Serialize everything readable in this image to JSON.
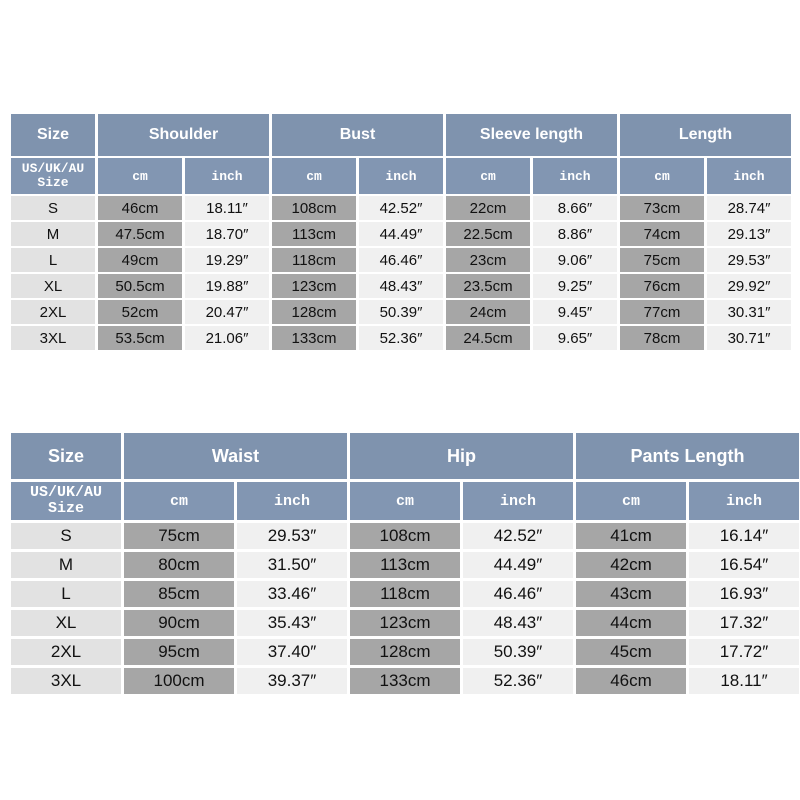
{
  "top": {
    "size_label": "Size",
    "region_label": "US/UK/AU\nSize",
    "groups": [
      "Shoulder",
      "Bust",
      "Sleeve length",
      "Length"
    ],
    "unit_cm": "cm",
    "unit_inch": "inch",
    "rows": [
      {
        "size": "S",
        "cells": [
          "46cm",
          "18.11″",
          "108cm",
          "42.52″",
          "22cm",
          "8.66″",
          "73cm",
          "28.74″"
        ]
      },
      {
        "size": "M",
        "cells": [
          "47.5cm",
          "18.70″",
          "113cm",
          "44.49″",
          "22.5cm",
          "8.86″",
          "74cm",
          "29.13″"
        ]
      },
      {
        "size": "L",
        "cells": [
          "49cm",
          "19.29″",
          "118cm",
          "46.46″",
          "23cm",
          "9.06″",
          "75cm",
          "29.53″"
        ]
      },
      {
        "size": "XL",
        "cells": [
          "50.5cm",
          "19.88″",
          "123cm",
          "48.43″",
          "23.5cm",
          "9.25″",
          "76cm",
          "29.92″"
        ]
      },
      {
        "size": "2XL",
        "cells": [
          "52cm",
          "20.47″",
          "128cm",
          "50.39″",
          "24cm",
          "9.45″",
          "77cm",
          "30.31″"
        ]
      },
      {
        "size": "3XL",
        "cells": [
          "53.5cm",
          "21.06″",
          "133cm",
          "52.36″",
          "24.5cm",
          "9.65″",
          "78cm",
          "30.71″"
        ]
      }
    ]
  },
  "bottom": {
    "size_label": "Size",
    "region_label": "US/UK/AU\nSize",
    "groups": [
      "Waist",
      "Hip",
      "Pants Length"
    ],
    "unit_cm": "cm",
    "unit_inch": "inch",
    "rows": [
      {
        "size": "S",
        "cells": [
          "75cm",
          "29.53″",
          "108cm",
          "42.52″",
          "41cm",
          "16.14″"
        ]
      },
      {
        "size": "M",
        "cells": [
          "80cm",
          "31.50″",
          "113cm",
          "44.49″",
          "42cm",
          "16.54″"
        ]
      },
      {
        "size": "L",
        "cells": [
          "85cm",
          "33.46″",
          "118cm",
          "46.46″",
          "43cm",
          "16.93″"
        ]
      },
      {
        "size": "XL",
        "cells": [
          "90cm",
          "35.43″",
          "123cm",
          "48.43″",
          "44cm",
          "17.32″"
        ]
      },
      {
        "size": "2XL",
        "cells": [
          "95cm",
          "37.40″",
          "128cm",
          "50.39″",
          "45cm",
          "17.72″"
        ]
      },
      {
        "size": "3XL",
        "cells": [
          "100cm",
          "39.37″",
          "133cm",
          "52.36″",
          "46cm",
          "18.11″"
        ]
      }
    ]
  },
  "colors": {
    "header": "#8094b0",
    "cm_cell": "#a6a6a6",
    "inch_cell": "#f0f0f0",
    "size_cell": "#e2e2e2"
  }
}
